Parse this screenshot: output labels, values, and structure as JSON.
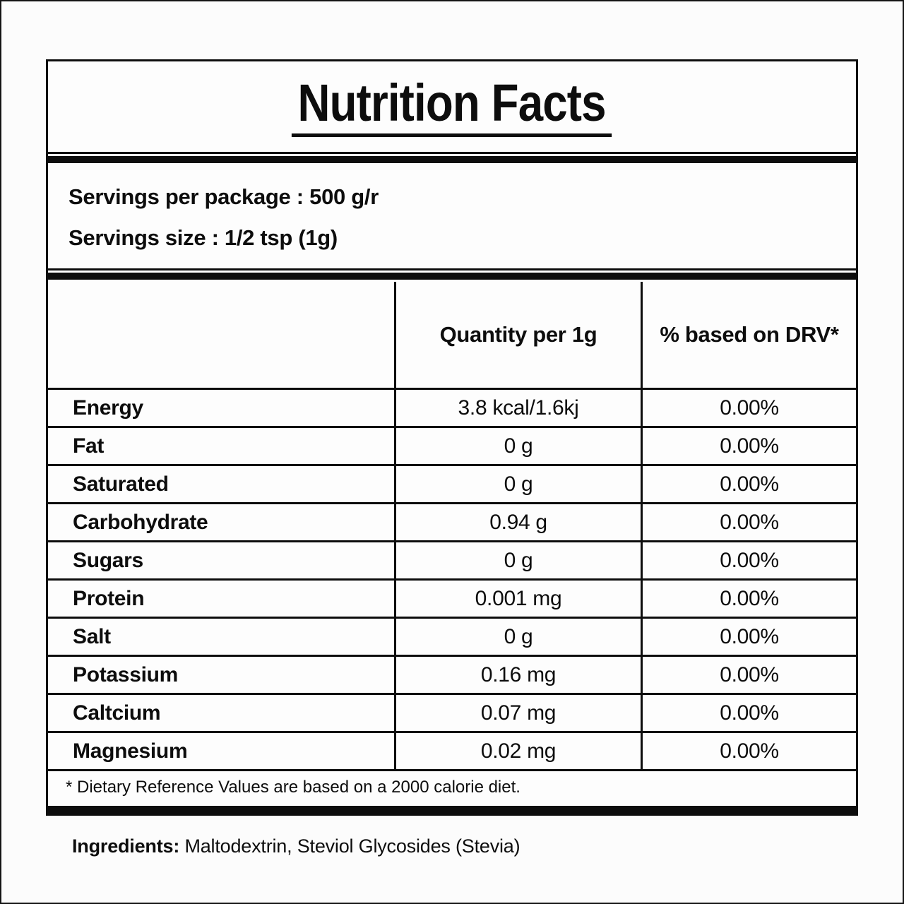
{
  "title": "Nutrition Facts",
  "servings": {
    "per_package": "Servings per package  : 500 g/r",
    "size": "Servings size  : 1/2 tsp (1g)"
  },
  "table": {
    "header": {
      "nutrient": "",
      "quantity": "Quantity per 1g",
      "drv": "% based on DRV*"
    },
    "rows": [
      {
        "nutrient": "Energy",
        "quantity": "3.8 kcal/1.6kj",
        "drv": "0.00%"
      },
      {
        "nutrient": "Fat",
        "quantity": "0 g",
        "drv": "0.00%"
      },
      {
        "nutrient": "Saturated",
        "quantity": "0 g",
        "drv": "0.00%"
      },
      {
        "nutrient": "Carbohydrate",
        "quantity": "0.94 g",
        "drv": "0.00%"
      },
      {
        "nutrient": "Sugars",
        "quantity": "0 g",
        "drv": "0.00%"
      },
      {
        "nutrient": "Protein",
        "quantity": "0.001 mg",
        "drv": "0.00%"
      },
      {
        "nutrient": "Salt",
        "quantity": "0 g",
        "drv": "0.00%"
      },
      {
        "nutrient": "Potassium",
        "quantity": "0.16 mg",
        "drv": "0.00%"
      },
      {
        "nutrient": "Caltcium",
        "quantity": "0.07 mg",
        "drv": "0.00%"
      },
      {
        "nutrient": "Magnesium",
        "quantity": "0.02 mg",
        "drv": "0.00%"
      }
    ]
  },
  "footnote": "* Dietary Reference Values are based on a 2000 calorie diet.",
  "ingredients": {
    "label": "Ingredients:",
    "value": "Maltodextrin, Steviol Glycosides (Stevia)"
  },
  "colors": {
    "ink": "#0d0d0d",
    "background": "#fcfcfc"
  }
}
